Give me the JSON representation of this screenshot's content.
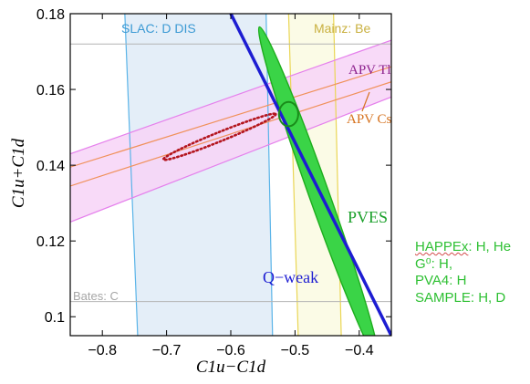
{
  "chart_data": {
    "type": "scatter",
    "xlabel": "C1u−C1d",
    "ylabel": "C1u+C1d",
    "xlim": [
      -0.85,
      -0.35
    ],
    "ylim": [
      0.095,
      0.18
    ],
    "x_ticks": [
      -0.8,
      -0.7,
      -0.6,
      -0.5,
      -0.4
    ],
    "y_ticks": [
      0.1,
      0.12,
      0.14,
      0.16,
      0.18
    ],
    "x_tick_labels": [
      "−0.8",
      "−0.7",
      "−0.6",
      "−0.5",
      "−0.4"
    ],
    "y_tick_labels": [
      "0.1",
      "0.12",
      "0.14",
      "0.16",
      "0.18"
    ],
    "grid": false,
    "series": [
      {
        "name": "SLAC: D DIS",
        "kind": "band",
        "color": "#5ab4e8",
        "fill": "#e4eef8",
        "left_edge": [
          [
            -0.765,
            0.18
          ],
          [
            -0.745,
            0.095
          ]
        ],
        "right_edge": [
          [
            -0.545,
            0.18
          ],
          [
            -0.535,
            0.095
          ]
        ]
      },
      {
        "name": "Mainz: Be",
        "kind": "band",
        "color": "#ead655",
        "fill": "#fbfbe6",
        "left_edge": [
          [
            -0.51,
            0.18
          ],
          [
            -0.495,
            0.095
          ]
        ],
        "right_edge": [
          [
            -0.44,
            0.18
          ],
          [
            -0.428,
            0.095
          ]
        ]
      },
      {
        "name": "APV Tl",
        "kind": "band",
        "color": "#e580ec",
        "fill": "#f7d3f7",
        "lower_edge": [
          [
            -0.85,
            0.125
          ],
          [
            -0.35,
            0.158
          ]
        ],
        "upper_edge": [
          [
            -0.85,
            0.143
          ],
          [
            -0.35,
            0.173
          ]
        ]
      },
      {
        "name": "APV Cs",
        "kind": "band",
        "color": "#f0915a",
        "lower_edge": [
          [
            -0.85,
            0.1345
          ],
          [
            -0.35,
            0.162
          ]
        ],
        "upper_edge": [
          [
            -0.85,
            0.1395
          ],
          [
            -0.35,
            0.166
          ]
        ]
      },
      {
        "name": "Q−weak",
        "kind": "line",
        "color": "#1d1dd2",
        "points": [
          [
            -0.6,
            0.18
          ],
          [
            -0.35,
            0.095
          ]
        ]
      },
      {
        "name": "PVES",
        "kind": "ellipse",
        "color": "#1ead1e",
        "fill": "#3ad447",
        "center": [
          -0.463,
          0.1325
        ],
        "semi_axes_x": 0.0925,
        "semi_axes_y": 0.044
      },
      {
        "name": "",
        "kind": "ellipse",
        "color": "#1a8c1a",
        "center": [
          -0.51,
          0.1535
        ],
        "semi_axes_x": 0.015,
        "semi_axes_y": 0.002
      },
      {
        "name": "",
        "kind": "dotted-ellipse",
        "color": "#b3141d",
        "points": [
          [
            -0.705,
            0.1415
          ],
          [
            -0.53,
            0.1535
          ]
        ]
      }
    ],
    "reference_lines": [
      {
        "name": "",
        "orientation": "horizontal",
        "y": 0.172,
        "color": "#b4b4b4"
      },
      {
        "name": "Bates: C",
        "orientation": "horizontal",
        "y": 0.104,
        "color": "#b4b4b4"
      }
    ],
    "annotations": [
      {
        "text": "SLAC: D DIS",
        "color": "#3c9ad4"
      },
      {
        "text": "Mainz: Be",
        "color": "#c9b03f"
      },
      {
        "text": "APV Tl",
        "color": "#8c1f8c"
      },
      {
        "text": "APV Cs",
        "color": "#d6721e"
      },
      {
        "text": "PVES",
        "color": "#1aa02a"
      },
      {
        "text": "Q−weak",
        "color": "#1d1dd2"
      },
      {
        "text": "Bates: C",
        "color": "#a6a6a6"
      }
    ]
  },
  "side_note": {
    "lines": [
      "HAPPEx: H, He",
      "G⁰: H,",
      "PVA4: H",
      "SAMPLE: H, D"
    ],
    "color": "#2ec033"
  }
}
